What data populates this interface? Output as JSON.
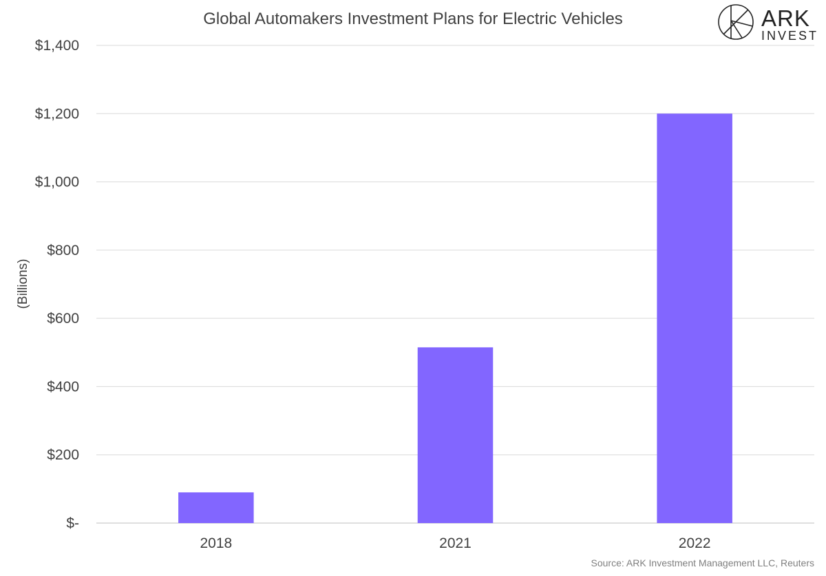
{
  "chart_data": {
    "type": "bar",
    "title": "Global Automakers Investment Plans for Electric Vehicles",
    "xlabel": "",
    "ylabel": "(Billions)",
    "categories": [
      "2018",
      "2021",
      "2022"
    ],
    "values": [
      90,
      515,
      1200
    ],
    "ylim": [
      0,
      1400
    ],
    "yticks": [
      0,
      200,
      400,
      600,
      800,
      1000,
      1200,
      1400
    ],
    "ytick_labels": [
      "$-",
      "$200",
      "$400",
      "$600",
      "$800",
      "$1,000",
      "$1,200",
      "$1,400"
    ],
    "grid": true,
    "legend": "none",
    "bar_color": "#8266ff",
    "source": "Source: ARK Investment Management LLC, Reuters"
  },
  "logo": {
    "name": "ARK",
    "sub": "INVEST"
  }
}
